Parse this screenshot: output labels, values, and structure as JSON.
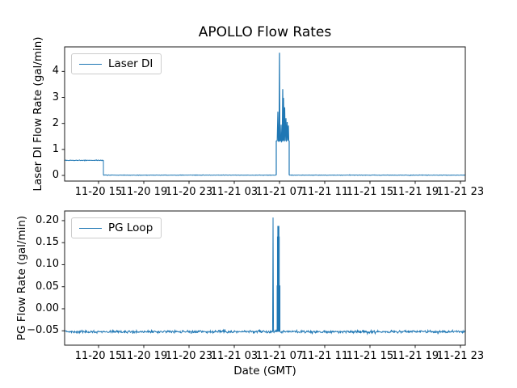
{
  "figure": {
    "title": "APOLLO Flow Rates",
    "xlabel": "Date (GMT)",
    "background_color": "#ffffff",
    "line_color": "#1f77b4",
    "spine_color": "#1a1a1a",
    "text_color": "#000000"
  },
  "chart_data": [
    {
      "type": "line",
      "panel": "top",
      "ylabel": "Laser DI Flow Rate (gal/min)",
      "legend": {
        "label": "Laser DI",
        "position": "upper left"
      },
      "grid": false,
      "x_unit": "hours relative to first data point (ticks every 4 h)",
      "xlim": [
        0,
        35.43
      ],
      "ylim": [
        -0.218,
        4.944
      ],
      "xticks": {
        "values": [
          3,
          7,
          11,
          15,
          19,
          23,
          27,
          31,
          35
        ],
        "labels": [
          "11-20 15",
          "11-20 19",
          "11-20 23",
          "11-21 03",
          "11-21 07",
          "11-21 11",
          "11-21 15",
          "11-21 19",
          "11-21 23"
        ]
      },
      "yticks": {
        "values": [
          0,
          1,
          2,
          3,
          4
        ],
        "labels": [
          "0",
          "1",
          "2",
          "3",
          "4"
        ]
      },
      "series": [
        {
          "name": "Laser DI",
          "color": "#1f77b4",
          "segments": [
            {
              "kind": "noisy",
              "t0": 0.0,
              "t1": 3.43,
              "value": 0.58,
              "amplitude": 0.018
            },
            {
              "kind": "path",
              "points": [
                [
                  3.43,
                  0.58
                ],
                [
                  3.43,
                  0.01
                ]
              ]
            },
            {
              "kind": "noisy",
              "t0": 3.43,
              "t1": 18.71,
              "value": 0.01,
              "amplitude": 0.012
            },
            {
              "kind": "path",
              "width": 1.2,
              "points": [
                [
                  18.714,
                  0.01
                ],
                [
                  18.714,
                  1.32
                ],
                [
                  18.8,
                  1.34
                ],
                [
                  18.857,
                  2.45
                ],
                [
                  18.9,
                  1.3
                ],
                [
                  18.96,
                  1.36
                ],
                [
                  19.0,
                  4.72
                ],
                [
                  19.03,
                  1.32
                ],
                [
                  19.1,
                  1.34
                ],
                [
                  19.143,
                  1.95
                ],
                [
                  19.18,
                  1.3
                ],
                [
                  19.24,
                  1.33
                ],
                [
                  19.286,
                  3.32
                ],
                [
                  19.32,
                  1.34
                ],
                [
                  19.357,
                  2.98
                ],
                [
                  19.4,
                  1.3
                ],
                [
                  19.46,
                  2.62
                ],
                [
                  19.5,
                  1.33
                ],
                [
                  19.571,
                  2.2
                ],
                [
                  19.61,
                  1.3
                ],
                [
                  19.68,
                  2.05
                ],
                [
                  19.72,
                  1.34
                ],
                [
                  19.786,
                  1.92
                ],
                [
                  19.82,
                  1.33
                ],
                [
                  19.857,
                  1.32
                ],
                [
                  19.857,
                  0.01
                ]
              ]
            },
            {
              "kind": "noisy",
              "t0": 19.86,
              "t1": 35.43,
              "value": 0.01,
              "amplitude": 0.012
            }
          ]
        }
      ]
    },
    {
      "type": "line",
      "panel": "bottom",
      "ylabel": "PG Flow Rate (gal/min)",
      "legend": {
        "label": "PG Loop",
        "position": "upper left"
      },
      "grid": false,
      "x_unit": "hours relative to first data point (ticks every 4 h)",
      "xlim": [
        0,
        35.43
      ],
      "ylim": [
        -0.0826,
        0.2219
      ],
      "xticks": {
        "values": [
          3,
          7,
          11,
          15,
          19,
          23,
          27,
          31,
          35
        ],
        "labels": [
          "11-20 15",
          "11-20 19",
          "11-20 23",
          "11-21 03",
          "11-21 07",
          "11-21 11",
          "11-21 15",
          "11-21 19",
          "11-21 23"
        ]
      },
      "yticks": {
        "values": [
          -0.05,
          0.0,
          0.05,
          0.1,
          0.15,
          0.2
        ],
        "labels": [
          "−0.05",
          "0.00",
          "0.05",
          "0.10",
          "0.15",
          "0.20"
        ]
      },
      "series": [
        {
          "name": "PG Loop",
          "color": "#1f77b4",
          "segments": [
            {
              "kind": "noisy",
              "t0": 0.0,
              "t1": 18.39,
              "value": -0.052,
              "amplitude": 0.0035
            },
            {
              "kind": "path",
              "points": [
                [
                  18.39,
                  -0.052
                ],
                [
                  18.43,
                  0.207
                ],
                [
                  18.47,
                  -0.052
                ]
              ]
            },
            {
              "kind": "noisy",
              "t0": 18.47,
              "t1": 18.79,
              "value": -0.052,
              "amplitude": 0.0035
            },
            {
              "kind": "path",
              "fill": true,
              "points": [
                [
                  18.79,
                  -0.052
                ],
                [
                  18.79,
                  0.052
                ],
                [
                  18.82,
                  0.052
                ],
                [
                  18.82,
                  0.163
                ],
                [
                  18.85,
                  0.163
                ],
                [
                  18.85,
                  0.187
                ],
                [
                  18.95,
                  0.187
                ],
                [
                  18.95,
                  0.163
                ],
                [
                  18.98,
                  0.163
                ],
                [
                  18.98,
                  0.052
                ],
                [
                  19.04,
                  0.052
                ],
                [
                  19.04,
                  -0.052
                ]
              ]
            },
            {
              "kind": "noisy",
              "t0": 19.04,
              "t1": 35.43,
              "value": -0.052,
              "amplitude": 0.0035
            }
          ]
        }
      ]
    }
  ]
}
